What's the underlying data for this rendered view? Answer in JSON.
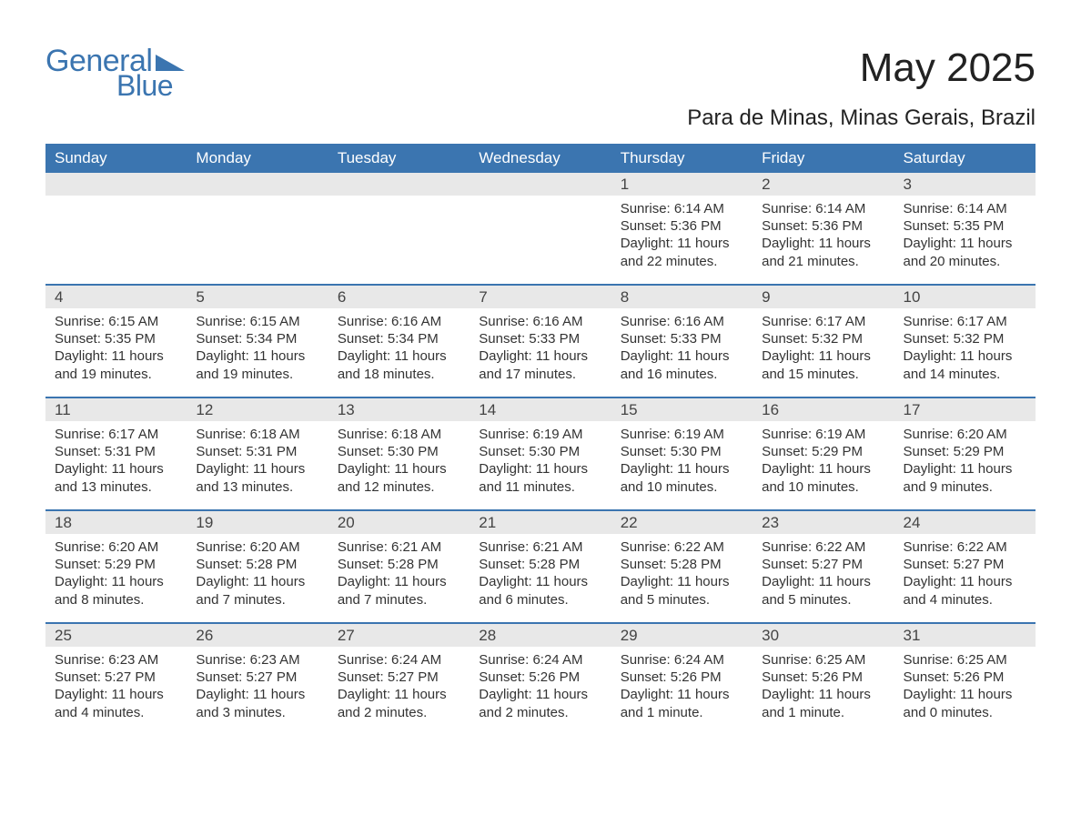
{
  "logo": {
    "text1": "General",
    "text2": "Blue"
  },
  "title": "May 2025",
  "subtitle": "Para de Minas, Minas Gerais, Brazil",
  "colors": {
    "brand": "#3b75b0",
    "daynum_bg": "#e8e8e8",
    "text": "#333333",
    "bg": "#ffffff"
  },
  "weekdays": [
    "Sunday",
    "Monday",
    "Tuesday",
    "Wednesday",
    "Thursday",
    "Friday",
    "Saturday"
  ],
  "weeks": [
    [
      {
        "empty": true
      },
      {
        "empty": true
      },
      {
        "empty": true
      },
      {
        "empty": true
      },
      {
        "n": "1",
        "sunrise": "Sunrise: 6:14 AM",
        "sunset": "Sunset: 5:36 PM",
        "day": "Daylight: 11 hours and 22 minutes."
      },
      {
        "n": "2",
        "sunrise": "Sunrise: 6:14 AM",
        "sunset": "Sunset: 5:36 PM",
        "day": "Daylight: 11 hours and 21 minutes."
      },
      {
        "n": "3",
        "sunrise": "Sunrise: 6:14 AM",
        "sunset": "Sunset: 5:35 PM",
        "day": "Daylight: 11 hours and 20 minutes."
      }
    ],
    [
      {
        "n": "4",
        "sunrise": "Sunrise: 6:15 AM",
        "sunset": "Sunset: 5:35 PM",
        "day": "Daylight: 11 hours and 19 minutes."
      },
      {
        "n": "5",
        "sunrise": "Sunrise: 6:15 AM",
        "sunset": "Sunset: 5:34 PM",
        "day": "Daylight: 11 hours and 19 minutes."
      },
      {
        "n": "6",
        "sunrise": "Sunrise: 6:16 AM",
        "sunset": "Sunset: 5:34 PM",
        "day": "Daylight: 11 hours and 18 minutes."
      },
      {
        "n": "7",
        "sunrise": "Sunrise: 6:16 AM",
        "sunset": "Sunset: 5:33 PM",
        "day": "Daylight: 11 hours and 17 minutes."
      },
      {
        "n": "8",
        "sunrise": "Sunrise: 6:16 AM",
        "sunset": "Sunset: 5:33 PM",
        "day": "Daylight: 11 hours and 16 minutes."
      },
      {
        "n": "9",
        "sunrise": "Sunrise: 6:17 AM",
        "sunset": "Sunset: 5:32 PM",
        "day": "Daylight: 11 hours and 15 minutes."
      },
      {
        "n": "10",
        "sunrise": "Sunrise: 6:17 AM",
        "sunset": "Sunset: 5:32 PM",
        "day": "Daylight: 11 hours and 14 minutes."
      }
    ],
    [
      {
        "n": "11",
        "sunrise": "Sunrise: 6:17 AM",
        "sunset": "Sunset: 5:31 PM",
        "day": "Daylight: 11 hours and 13 minutes."
      },
      {
        "n": "12",
        "sunrise": "Sunrise: 6:18 AM",
        "sunset": "Sunset: 5:31 PM",
        "day": "Daylight: 11 hours and 13 minutes."
      },
      {
        "n": "13",
        "sunrise": "Sunrise: 6:18 AM",
        "sunset": "Sunset: 5:30 PM",
        "day": "Daylight: 11 hours and 12 minutes."
      },
      {
        "n": "14",
        "sunrise": "Sunrise: 6:19 AM",
        "sunset": "Sunset: 5:30 PM",
        "day": "Daylight: 11 hours and 11 minutes."
      },
      {
        "n": "15",
        "sunrise": "Sunrise: 6:19 AM",
        "sunset": "Sunset: 5:30 PM",
        "day": "Daylight: 11 hours and 10 minutes."
      },
      {
        "n": "16",
        "sunrise": "Sunrise: 6:19 AM",
        "sunset": "Sunset: 5:29 PM",
        "day": "Daylight: 11 hours and 10 minutes."
      },
      {
        "n": "17",
        "sunrise": "Sunrise: 6:20 AM",
        "sunset": "Sunset: 5:29 PM",
        "day": "Daylight: 11 hours and 9 minutes."
      }
    ],
    [
      {
        "n": "18",
        "sunrise": "Sunrise: 6:20 AM",
        "sunset": "Sunset: 5:29 PM",
        "day": "Daylight: 11 hours and 8 minutes."
      },
      {
        "n": "19",
        "sunrise": "Sunrise: 6:20 AM",
        "sunset": "Sunset: 5:28 PM",
        "day": "Daylight: 11 hours and 7 minutes."
      },
      {
        "n": "20",
        "sunrise": "Sunrise: 6:21 AM",
        "sunset": "Sunset: 5:28 PM",
        "day": "Daylight: 11 hours and 7 minutes."
      },
      {
        "n": "21",
        "sunrise": "Sunrise: 6:21 AM",
        "sunset": "Sunset: 5:28 PM",
        "day": "Daylight: 11 hours and 6 minutes."
      },
      {
        "n": "22",
        "sunrise": "Sunrise: 6:22 AM",
        "sunset": "Sunset: 5:28 PM",
        "day": "Daylight: 11 hours and 5 minutes."
      },
      {
        "n": "23",
        "sunrise": "Sunrise: 6:22 AM",
        "sunset": "Sunset: 5:27 PM",
        "day": "Daylight: 11 hours and 5 minutes."
      },
      {
        "n": "24",
        "sunrise": "Sunrise: 6:22 AM",
        "sunset": "Sunset: 5:27 PM",
        "day": "Daylight: 11 hours and 4 minutes."
      }
    ],
    [
      {
        "n": "25",
        "sunrise": "Sunrise: 6:23 AM",
        "sunset": "Sunset: 5:27 PM",
        "day": "Daylight: 11 hours and 4 minutes."
      },
      {
        "n": "26",
        "sunrise": "Sunrise: 6:23 AM",
        "sunset": "Sunset: 5:27 PM",
        "day": "Daylight: 11 hours and 3 minutes."
      },
      {
        "n": "27",
        "sunrise": "Sunrise: 6:24 AM",
        "sunset": "Sunset: 5:27 PM",
        "day": "Daylight: 11 hours and 2 minutes."
      },
      {
        "n": "28",
        "sunrise": "Sunrise: 6:24 AM",
        "sunset": "Sunset: 5:26 PM",
        "day": "Daylight: 11 hours and 2 minutes."
      },
      {
        "n": "29",
        "sunrise": "Sunrise: 6:24 AM",
        "sunset": "Sunset: 5:26 PM",
        "day": "Daylight: 11 hours and 1 minute."
      },
      {
        "n": "30",
        "sunrise": "Sunrise: 6:25 AM",
        "sunset": "Sunset: 5:26 PM",
        "day": "Daylight: 11 hours and 1 minute."
      },
      {
        "n": "31",
        "sunrise": "Sunrise: 6:25 AM",
        "sunset": "Sunset: 5:26 PM",
        "day": "Daylight: 11 hours and 0 minutes."
      }
    ]
  ]
}
